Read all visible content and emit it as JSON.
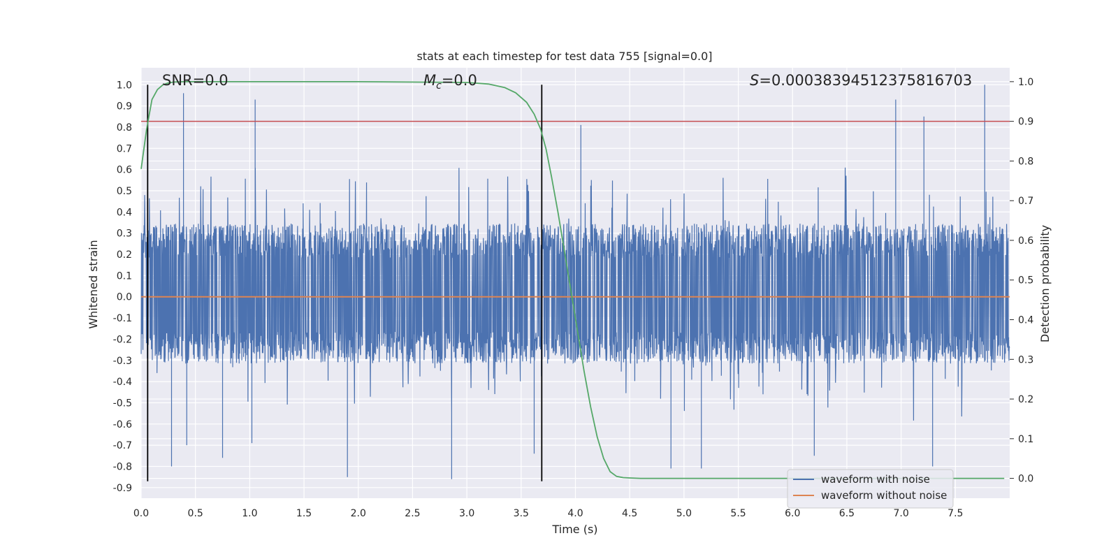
{
  "chart_data": {
    "type": "line",
    "title": "stats at each timestep for test data 755 [signal=0.0]",
    "xlabel": "Time (s)",
    "ylabel_left": "Whitened strain",
    "ylabel_right": "Detection probability",
    "xlim": [
      0.0,
      8.0
    ],
    "ylim_left": [
      -0.95,
      1.08
    ],
    "ylim_right": [
      -0.05,
      1.035
    ],
    "x_ticks": [
      "0.0",
      "0.5",
      "1.0",
      "1.5",
      "2.0",
      "2.5",
      "3.0",
      "3.5",
      "4.0",
      "4.5",
      "5.0",
      "5.5",
      "6.0",
      "6.5",
      "7.0",
      "7.5"
    ],
    "x_tick_values": [
      0.0,
      0.5,
      1.0,
      1.5,
      2.0,
      2.5,
      3.0,
      3.5,
      4.0,
      4.5,
      5.0,
      5.5,
      6.0,
      6.5,
      7.0,
      7.5
    ],
    "y_left_ticks": [
      "1.0",
      "0.9",
      "0.8",
      "0.7",
      "0.6",
      "0.5",
      "0.4",
      "0.3",
      "0.2",
      "0.1",
      "0.0",
      "-0.1",
      "-0.2",
      "-0.3",
      "-0.4",
      "-0.5",
      "-0.6",
      "-0.7",
      "-0.8",
      "-0.9"
    ],
    "y_left_tick_values": [
      1.0,
      0.9,
      0.8,
      0.7,
      0.6,
      0.5,
      0.4,
      0.3,
      0.2,
      0.1,
      0.0,
      -0.1,
      -0.2,
      -0.3,
      -0.4,
      -0.5,
      -0.6,
      -0.7,
      -0.8,
      -0.9
    ],
    "y_right_ticks": [
      "1.0",
      "0.9",
      "0.8",
      "0.7",
      "0.6",
      "0.5",
      "0.4",
      "0.3",
      "0.2",
      "0.1",
      "0.0"
    ],
    "y_right_tick_values": [
      1.0,
      0.9,
      0.8,
      0.7,
      0.6,
      0.5,
      0.4,
      0.3,
      0.2,
      0.1,
      0.0
    ],
    "annotations": {
      "snr": "SNR=0.0",
      "mc_symbol": "M",
      "mc_subscript": "c",
      "mc_value": "=0.0",
      "s_symbol": "S",
      "s_value": "=0.00038394512375816703"
    },
    "legend": {
      "position": "bottom-right",
      "entries": [
        "waveform with noise",
        "waveform without noise"
      ]
    },
    "colors": {
      "noise": "#4c72b0",
      "clean": "#dd8452",
      "probability": "#55a868",
      "threshold": "#c44e52",
      "markers": "#000000",
      "plot_bg": "#eaeaf2",
      "grid": "#ffffff"
    },
    "series": [
      {
        "name": "waveform with noise",
        "axis": "left",
        "kind": "noise",
        "x_range": [
          0.0,
          8.0
        ],
        "typical_band": [
          -0.3,
          0.33
        ],
        "spikes": [
          {
            "x": 0.39,
            "y": 0.96
          },
          {
            "x": 1.05,
            "y": 0.93
          },
          {
            "x": 4.05,
            "y": 0.81
          },
          {
            "x": 6.95,
            "y": 0.93
          },
          {
            "x": 7.21,
            "y": 0.85
          },
          {
            "x": 7.77,
            "y": 1.0
          },
          {
            "x": 0.28,
            "y": -0.8
          },
          {
            "x": 0.42,
            "y": -0.7
          },
          {
            "x": 0.75,
            "y": -0.76
          },
          {
            "x": 1.02,
            "y": -0.69
          },
          {
            "x": 1.9,
            "y": -0.85
          },
          {
            "x": 2.86,
            "y": -0.86
          },
          {
            "x": 3.62,
            "y": -0.74
          },
          {
            "x": 4.88,
            "y": -0.81
          },
          {
            "x": 5.16,
            "y": -0.81
          },
          {
            "x": 6.2,
            "y": -0.75
          },
          {
            "x": 7.29,
            "y": -0.8
          }
        ]
      },
      {
        "name": "waveform without noise",
        "axis": "left",
        "x": [
          0.0,
          8.0
        ],
        "y": [
          0.0,
          0.0
        ]
      },
      {
        "name": "Detection probability",
        "axis": "right",
        "x": [
          0.0,
          0.05,
          0.1,
          0.15,
          0.2,
          0.25,
          0.3,
          0.4,
          0.5,
          1.0,
          2.0,
          3.0,
          3.2,
          3.35,
          3.45,
          3.55,
          3.62,
          3.68,
          3.73,
          3.78,
          3.84,
          3.9,
          3.96,
          4.02,
          4.08,
          4.14,
          4.2,
          4.26,
          4.32,
          4.38,
          4.44,
          4.5,
          4.6,
          4.8,
          5.0,
          6.0,
          7.0,
          7.95
        ],
        "y": [
          0.78,
          0.88,
          0.955,
          0.98,
          0.992,
          0.997,
          0.999,
          1.0,
          1.0,
          1.0,
          1.0,
          0.998,
          0.994,
          0.985,
          0.972,
          0.948,
          0.918,
          0.88,
          0.83,
          0.76,
          0.67,
          0.57,
          0.47,
          0.37,
          0.27,
          0.18,
          0.105,
          0.05,
          0.017,
          0.005,
          0.002,
          0.001,
          0.0,
          0.0,
          0.0,
          0.0,
          0.0,
          0.0
        ]
      },
      {
        "name": "threshold",
        "axis": "right",
        "x": [
          0.0,
          8.0
        ],
        "y": [
          0.9,
          0.9
        ]
      }
    ],
    "vertical_markers": [
      {
        "x": 0.06,
        "y_range": [
          -0.87,
          1.0
        ]
      },
      {
        "x": 3.69,
        "y_range": [
          -0.87,
          1.0
        ]
      }
    ]
  }
}
